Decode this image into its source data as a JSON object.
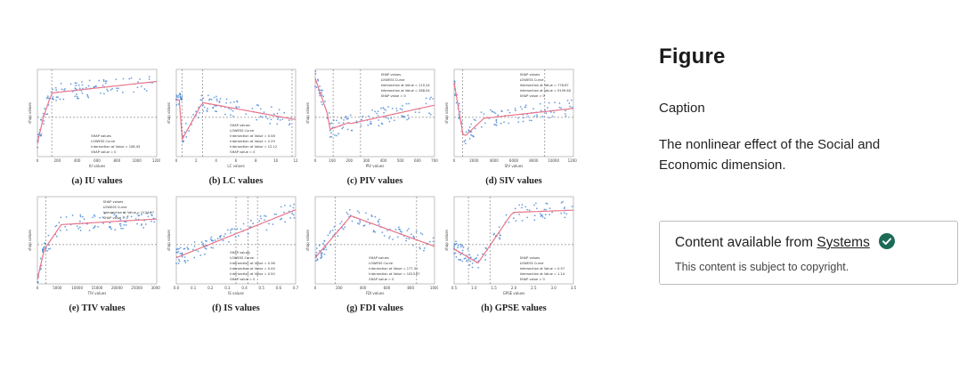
{
  "figure": {
    "heading": "Figure",
    "caption_label": "Caption",
    "caption_text": "The nonlinear effect of the Social and Economic dimension."
  },
  "source_box": {
    "prefix": "Content available from",
    "link": "Systems",
    "copyright": "This content is subject to copyright."
  },
  "colors": {
    "points": "#3b7fd0",
    "lowess": "#e8758a",
    "badge": "#1d6b57"
  },
  "panels": [
    {
      "caption": "(a) IU values",
      "xlabel": "IU values",
      "ylabel": "shap values",
      "legend": [
        "SHAP values",
        "LOWESS Curve",
        "Intersection at Value = 108.43",
        "SHAP value = 0"
      ],
      "xticks": [
        "0",
        "200",
        "400",
        "600",
        "800",
        "1000",
        "1200"
      ]
    },
    {
      "caption": "(b) LC values",
      "xlabel": "LC values",
      "ylabel": "shap values",
      "legend": [
        "SHAP values",
        "LOWESS Curve",
        "Intersection at Value = 0.58",
        "Intersection at Value = 2.29",
        "Intersection at Value = 12.12",
        "SHAP value = 0"
      ],
      "xticks": [
        "0",
        "2",
        "4",
        "6",
        "8",
        "10",
        "12"
      ]
    },
    {
      "caption": "(c) PIV values",
      "xlabel": "PIV values",
      "ylabel": "shap values",
      "legend": [
        "SHAP values",
        "LOWESS Curve",
        "Intersection at Value = 110.24",
        "Intersection at Value = 288.04",
        "SHAP value = 0"
      ],
      "xticks": [
        "0",
        "100",
        "200",
        "300",
        "400",
        "500",
        "600",
        "700"
      ]
    },
    {
      "caption": "(d) SIV values",
      "xlabel": "SIV values",
      "ylabel": "shap values",
      "legend": [
        "SHAP values",
        "LOWESS Curve",
        "Intersection at Value = 778.67",
        "Intersection at Value = 9159.60",
        "SHAP value = 0"
      ],
      "xticks": [
        "0",
        "2000",
        "4000",
        "6000",
        "8000",
        "10000",
        "12000"
      ]
    },
    {
      "caption": "(e) TIV values",
      "xlabel": "TIV values",
      "ylabel": "shap values",
      "legend": [
        "SHAP values",
        "LOWESS Curve",
        "Intersection at Value = 2124.57",
        "SHAP value = 0"
      ],
      "xticks": [
        "0",
        "5000",
        "10000",
        "15000",
        "20000",
        "25000",
        "30000"
      ]
    },
    {
      "caption": "(f) IS values",
      "xlabel": "IS values",
      "ylabel": "shap values",
      "legend": [
        "SHAP values",
        "LOWESS Curve",
        "Intersection at Value = 0.36",
        "Intersection at Value = 0.44",
        "Intersection at Value = 0.50",
        "SHAP value = 0"
      ],
      "xticks": [
        "0.0",
        "0.1",
        "0.2",
        "0.3",
        "0.4",
        "0.5",
        "0.6",
        "0.7"
      ]
    },
    {
      "caption": "(g) FDI values",
      "xlabel": "FDI values",
      "ylabel": "shap values",
      "legend": [
        "SHAP values",
        "LOWESS Curve",
        "Intersection at Value = 177.31",
        "Intersection at Value = 1023.87",
        "SHAP value = 0"
      ],
      "xticks": [
        "0",
        "200",
        "400",
        "600",
        "800",
        "1000"
      ]
    },
    {
      "caption": "(h) GPSE values",
      "xlabel": "GPSE values",
      "ylabel": "shap values",
      "legend": [
        "SHAP values",
        "LOWESS Curve",
        "Intersection at Value = 0.57",
        "Intersection at Value = 1.14",
        "SHAP value = 0"
      ],
      "xticks": [
        "0.5",
        "1.0",
        "1.5",
        "2.0",
        "2.5",
        "3.0",
        "3.5"
      ]
    }
  ]
}
